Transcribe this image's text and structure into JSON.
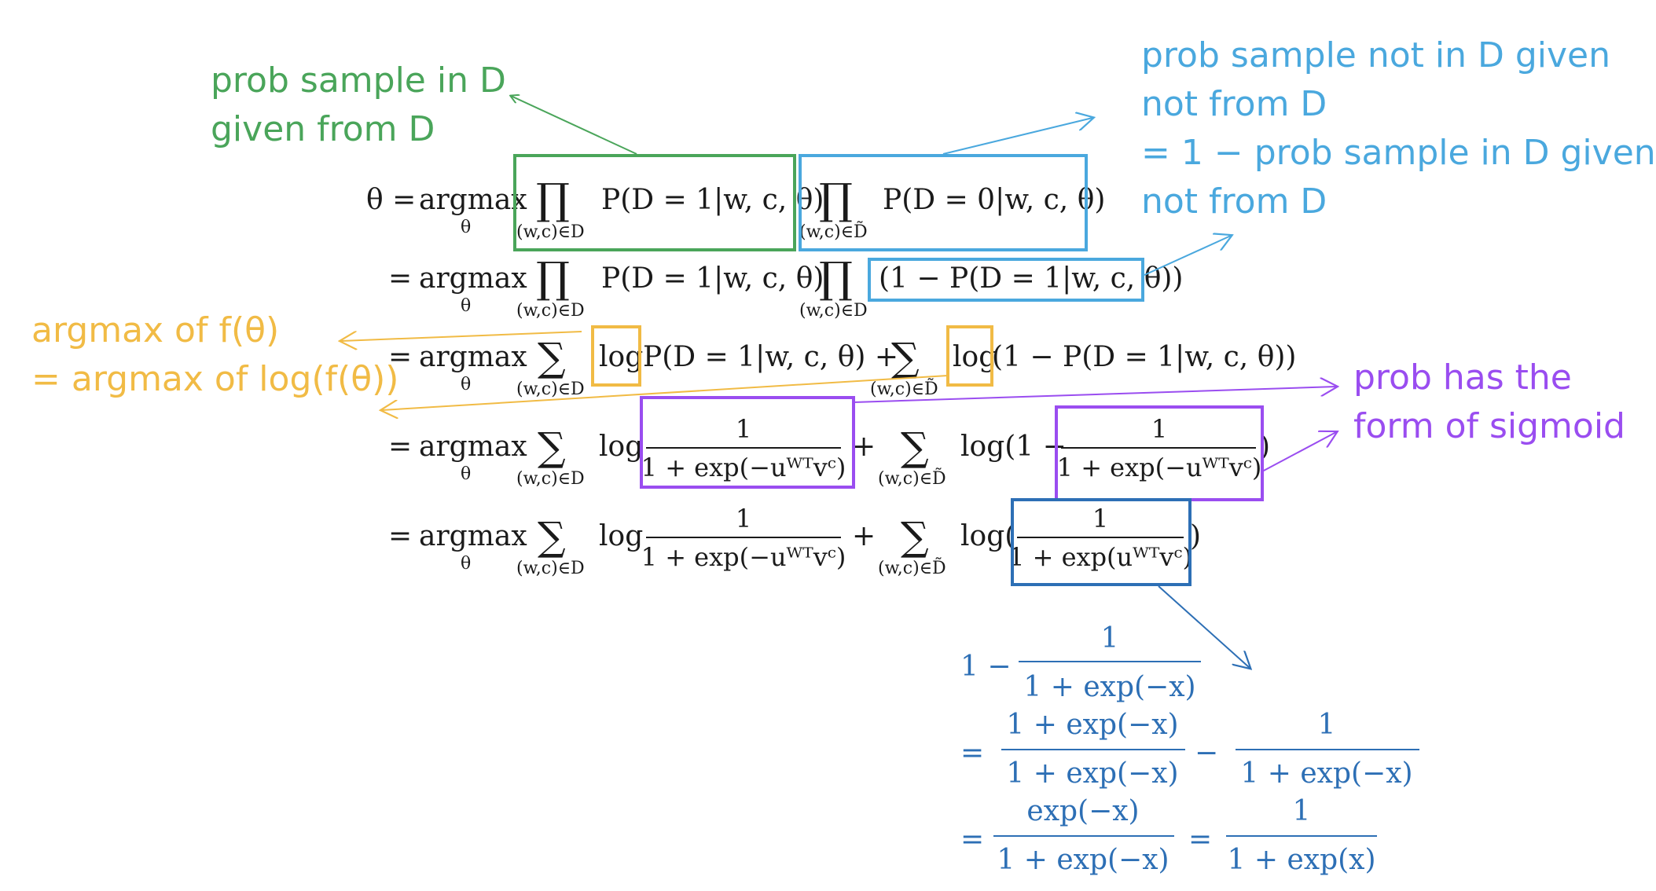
{
  "annotations": {
    "green": [
      "prob sample in D",
      "given from D"
    ],
    "blue": [
      "prob sample not in D given",
      "not from D",
      "= 1 − prob sample in D given",
      "not from D"
    ],
    "orange": [
      "argmax of f(θ)",
      "= argmax of log(f(θ))"
    ],
    "purple": [
      "prob has the",
      "form of sigmoid"
    ]
  },
  "equations": {
    "lhs": "θ =",
    "eq": "=",
    "argmax": "argmax",
    "theta_sub": "θ",
    "prod": "∏",
    "sum": "∑",
    "sub_D": "(w,c)∈D",
    "sub_Dtilde": "(w,c)∈D̃",
    "log": "log",
    "plus": "+",
    "one": "1",
    "row1_term1": "P(D = 1|w, c, θ)",
    "row1_term2": "P(D = 0|w, c, θ)",
    "row2_term1": "P(D = 1|w, c, θ)",
    "row2_term2": "(1 − P(D = 1|w, c, θ))",
    "row3_term1": "P(D = 1|w, c, θ) +",
    "row3_term2": "(1 − P(D = 1|w, c, θ))",
    "log_open": "log(1 −",
    "log_paren": "log(",
    "close_paren": ")",
    "den_neg": "1 + exp(−uᵂᵀvᶜ)",
    "den_pos": "1 + exp(uᵂᵀvᶜ)"
  },
  "derivation": {
    "one_minus": "1 −",
    "one": "1",
    "eq": "=",
    "minus": "−",
    "den_neg": "1 + exp(−x)",
    "den_pos": "1 + exp(x)",
    "num_full": "1 + exp(−x)",
    "num_exp": "exp(−x)"
  },
  "colors": {
    "green": "#4aa55a",
    "light_blue": "#4aa8de",
    "dark_blue": "#2d6fb5",
    "orange": "#f1bb45",
    "purple": "#9a4df0"
  }
}
